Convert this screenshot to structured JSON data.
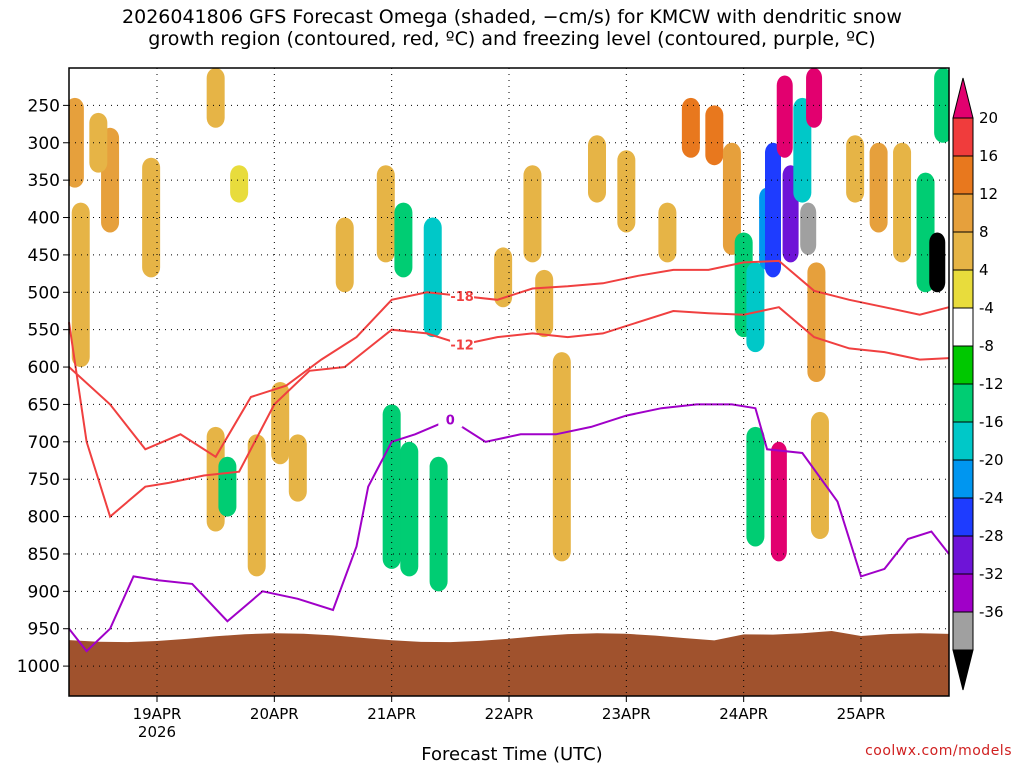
{
  "chart_data": {
    "type": "heatmap",
    "title_line1": "2026041806 GFS Forecast Omega (shaded, −cm/s) for KMCW with dendritic snow",
    "title_line2": "growth region (contoured, red, ºC) and freezing level (contoured, purple, ºC)",
    "xlabel": "Forecast Time (UTC)",
    "ylabel": "",
    "credit": "coolwx.com/models",
    "x_ticks": [
      "19APR",
      "20APR",
      "21APR",
      "22APR",
      "23APR",
      "24APR",
      "25APR"
    ],
    "x_tick_days": [
      1,
      2,
      3,
      4,
      5,
      6,
      7
    ],
    "x_year": "2026",
    "xlim": [
      0.25,
      7.75
    ],
    "y_ticks": [
      250,
      300,
      350,
      400,
      450,
      500,
      550,
      600,
      650,
      700,
      750,
      800,
      850,
      900,
      950,
      1000
    ],
    "ylim": [
      1040,
      200
    ],
    "colorbar": {
      "labels": [
        20,
        16,
        12,
        8,
        4,
        -4,
        -8,
        -12,
        -16,
        -20,
        -24,
        -28,
        -32,
        -36
      ],
      "colors": [
        "#e2006f",
        "#f03c3c",
        "#e8781e",
        "#e6a03c",
        "#e6b446",
        "#e8dc3c",
        "#ffffff",
        "#00c800",
        "#00cd73",
        "#00c8c8",
        "#0096f0",
        "#1e3cff",
        "#6e14d7",
        "#a000c8",
        "#a0a0a0",
        "#000000"
      ]
    },
    "omega_cells": [
      {
        "t": 0.3,
        "p": [
          240,
          360
        ],
        "v": 8
      },
      {
        "t": 0.35,
        "p": [
          380,
          600
        ],
        "v": 6
      },
      {
        "t": 0.6,
        "p": [
          280,
          420
        ],
        "v": 9
      },
      {
        "t": 0.5,
        "p": [
          260,
          340
        ],
        "v": 6
      },
      {
        "t": 0.95,
        "p": [
          320,
          480
        ],
        "v": 6
      },
      {
        "t": 1.5,
        "p": [
          200,
          280
        ],
        "v": 6
      },
      {
        "t": 1.7,
        "p": [
          330,
          380
        ],
        "v": 5
      },
      {
        "t": 1.5,
        "p": [
          680,
          820
        ],
        "v": 6
      },
      {
        "t": 1.6,
        "p": [
          720,
          800
        ],
        "v": -10
      },
      {
        "t": 1.85,
        "p": [
          690,
          880
        ],
        "v": 6
      },
      {
        "t": 2.05,
        "p": [
          620,
          730
        ],
        "v": 6
      },
      {
        "t": 2.2,
        "p": [
          690,
          780
        ],
        "v": 6
      },
      {
        "t": 2.6,
        "p": [
          400,
          500
        ],
        "v": 6
      },
      {
        "t": 2.95,
        "p": [
          330,
          460
        ],
        "v": 6
      },
      {
        "t": 3.1,
        "p": [
          380,
          480
        ],
        "v": -10
      },
      {
        "t": 3.35,
        "p": [
          400,
          560
        ],
        "v": -12
      },
      {
        "t": 3.0,
        "p": [
          650,
          870
        ],
        "v": -8
      },
      {
        "t": 3.15,
        "p": [
          700,
          880
        ],
        "v": -9
      },
      {
        "t": 3.4,
        "p": [
          720,
          900
        ],
        "v": -8
      },
      {
        "t": 3.95,
        "p": [
          440,
          520
        ],
        "v": 6
      },
      {
        "t": 4.2,
        "p": [
          330,
          460
        ],
        "v": 6
      },
      {
        "t": 4.3,
        "p": [
          470,
          560
        ],
        "v": 6
      },
      {
        "t": 4.45,
        "p": [
          580,
          860
        ],
        "v": 6
      },
      {
        "t": 4.75,
        "p": [
          290,
          380
        ],
        "v": 6
      },
      {
        "t": 5.0,
        "p": [
          310,
          420
        ],
        "v": 6
      },
      {
        "t": 5.35,
        "p": [
          380,
          460
        ],
        "v": 6
      },
      {
        "t": 5.55,
        "p": [
          240,
          320
        ],
        "v": 14
      },
      {
        "t": 5.75,
        "p": [
          250,
          330
        ],
        "v": 12
      },
      {
        "t": 5.9,
        "p": [
          300,
          450
        ],
        "v": 8
      },
      {
        "t": 6.0,
        "p": [
          420,
          560
        ],
        "v": -8
      },
      {
        "t": 6.1,
        "p": [
          460,
          580
        ],
        "v": -12
      },
      {
        "t": 6.2,
        "p": [
          360,
          470
        ],
        "v": -16
      },
      {
        "t": 6.25,
        "p": [
          300,
          480
        ],
        "v": -20
      },
      {
        "t": 6.35,
        "p": [
          210,
          320
        ],
        "v": 20
      },
      {
        "t": 6.4,
        "p": [
          330,
          460
        ],
        "v": -24
      },
      {
        "t": 6.5,
        "p": [
          240,
          380
        ],
        "v": -12
      },
      {
        "t": 6.55,
        "p": [
          380,
          450
        ],
        "v": -32
      },
      {
        "t": 6.6,
        "p": [
          200,
          280
        ],
        "v": 20
      },
      {
        "t": 6.62,
        "p": [
          460,
          620
        ],
        "v": 10
      },
      {
        "t": 6.65,
        "p": [
          660,
          830
        ],
        "v": 6
      },
      {
        "t": 6.3,
        "p": [
          700,
          860
        ],
        "v": 20
      },
      {
        "t": 6.1,
        "p": [
          680,
          840
        ],
        "v": -8
      },
      {
        "t": 6.95,
        "p": [
          290,
          380
        ],
        "v": 6
      },
      {
        "t": 7.15,
        "p": [
          300,
          420
        ],
        "v": 8
      },
      {
        "t": 7.35,
        "p": [
          300,
          460
        ],
        "v": 6
      },
      {
        "t": 7.55,
        "p": [
          340,
          500
        ],
        "v": -10
      },
      {
        "t": 7.65,
        "p": [
          420,
          500
        ],
        "v": -36
      },
      {
        "t": 7.7,
        "p": [
          200,
          300
        ],
        "v": -8
      }
    ],
    "contours": [
      {
        "name": "dgz -18 C",
        "color": "#f04040",
        "label": "-18",
        "t": [
          0.25,
          0.6,
          0.9,
          1.2,
          1.5,
          1.8,
          2.1,
          2.4,
          2.7,
          3.0,
          3.3,
          3.6,
          3.9,
          4.2,
          4.5,
          4.8,
          5.1,
          5.4,
          5.7,
          6.0,
          6.3,
          6.6,
          6.9,
          7.2,
          7.5,
          7.75
        ],
        "p": [
          600,
          650,
          710,
          690,
          720,
          640,
          625,
          590,
          560,
          510,
          500,
          505,
          510,
          495,
          492,
          488,
          478,
          470,
          470,
          460,
          458,
          498,
          510,
          520,
          530,
          520
        ]
      },
      {
        "name": "dgz -12 C",
        "color": "#f04040",
        "label": "-12",
        "t": [
          0.25,
          0.4,
          0.6,
          0.9,
          1.1,
          1.4,
          1.7,
          2.0,
          2.3,
          2.6,
          3.0,
          3.3,
          3.6,
          3.9,
          4.2,
          4.5,
          4.8,
          5.1,
          5.4,
          5.7,
          6.0,
          6.3,
          6.6,
          6.9,
          7.2,
          7.5,
          7.75
        ],
        "p": [
          540,
          700,
          800,
          760,
          755,
          745,
          740,
          650,
          605,
          600,
          550,
          555,
          570,
          560,
          555,
          560,
          555,
          540,
          525,
          528,
          530,
          520,
          560,
          575,
          580,
          590,
          588
        ]
      },
      {
        "name": "freezing level 0 C",
        "color": "#a000c8",
        "label": "0",
        "t": [
          0.25,
          0.4,
          0.6,
          0.8,
          1.0,
          1.3,
          1.6,
          1.9,
          2.2,
          2.5,
          2.7,
          2.8,
          3.0,
          3.2,
          3.5,
          3.8,
          4.1,
          4.4,
          4.7,
          5.0,
          5.3,
          5.6,
          5.9,
          6.1,
          6.2,
          6.5,
          6.8,
          7.0,
          7.2,
          7.4,
          7.6,
          7.75
        ],
        "p": [
          950,
          980,
          950,
          880,
          885,
          890,
          940,
          900,
          910,
          925,
          840,
          760,
          700,
          690,
          670,
          700,
          690,
          690,
          680,
          665,
          655,
          650,
          650,
          655,
          710,
          715,
          780,
          880,
          870,
          830,
          820,
          850
        ]
      }
    ]
  }
}
